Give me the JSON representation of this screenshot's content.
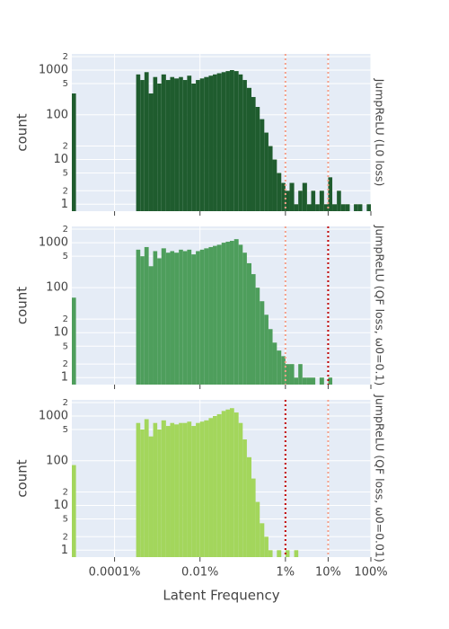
{
  "chart_data": [
    {
      "type": "histogram",
      "panel_label": "JumpReLU (L0 loss)",
      "y_label": "count",
      "color": "#1f5c2e",
      "xlim": [
        1e-05,
        100
      ],
      "xlog": true,
      "ylim": [
        0.7,
        2300
      ],
      "ylog": true,
      "grid": true,
      "yticks": [
        1,
        2,
        5,
        10,
        {
          "value": 20,
          "label": "2"
        },
        100,
        {
          "value": 500,
          "label": "5"
        },
        1000,
        {
          "value": 2000,
          "label": "2"
        }
      ],
      "vlines": [
        {
          "x": 1,
          "color": "#f4a08a"
        },
        {
          "x": 10,
          "color": "#f4a08a"
        }
      ],
      "bins": [
        1e-05,
        1.25e-05,
        1.6e-05,
        2e-05,
        2.5e-05,
        3.2e-05,
        4e-05,
        5e-05,
        6.3e-05,
        8e-05,
        0.0001,
        0.000125,
        0.00016,
        0.0002,
        0.00025,
        0.00032,
        0.0004,
        0.0005,
        0.00063,
        0.0008,
        0.001,
        0.00125,
        0.0016,
        0.002,
        0.0025,
        0.0032,
        0.004,
        0.005,
        0.0063,
        0.008,
        0.01,
        0.0125,
        0.016,
        0.02,
        0.025,
        0.032,
        0.04,
        0.05,
        0.063,
        0.08,
        0.1,
        0.125,
        0.16,
        0.2,
        0.25,
        0.32,
        0.4,
        0.5,
        0.63,
        0.8,
        1,
        1.25,
        1.6,
        2,
        2.5,
        3.2,
        4,
        5,
        6.3,
        8,
        10,
        12.5,
        16,
        20,
        25,
        32,
        40,
        50,
        63,
        80,
        100
      ],
      "counts": [
        300,
        0,
        0,
        0,
        0,
        0,
        0,
        0,
        0,
        0,
        0,
        0,
        0,
        0,
        0,
        800,
        600,
        900,
        300,
        700,
        500,
        800,
        600,
        700,
        650,
        700,
        600,
        750,
        500,
        600,
        650,
        700,
        750,
        800,
        850,
        900,
        950,
        1000,
        950,
        800,
        600,
        400,
        250,
        150,
        80,
        40,
        20,
        10,
        5,
        3,
        2,
        3,
        1,
        2,
        3,
        1,
        2,
        1,
        2,
        1,
        4,
        1,
        2,
        1,
        1,
        0,
        1,
        1,
        0,
        1
      ]
    },
    {
      "type": "histogram",
      "panel_label": "JumpReLU (QF loss, ω0=0.1)",
      "y_label": "count",
      "color": "#4e9e5c",
      "xlim": [
        1e-05,
        100
      ],
      "xlog": true,
      "ylim": [
        0.7,
        2300
      ],
      "ylog": true,
      "grid": true,
      "yticks": [
        1,
        2,
        5,
        10,
        {
          "value": 20,
          "label": "2"
        },
        100,
        {
          "value": 500,
          "label": "5"
        },
        1000,
        {
          "value": 2000,
          "label": "2"
        }
      ],
      "vlines": [
        {
          "x": 1,
          "color": "#f4a08a"
        },
        {
          "x": 10,
          "color": "#c00000"
        }
      ],
      "bins": [
        1e-05,
        1.25e-05,
        1.6e-05,
        2e-05,
        2.5e-05,
        3.2e-05,
        4e-05,
        5e-05,
        6.3e-05,
        8e-05,
        0.0001,
        0.000125,
        0.00016,
        0.0002,
        0.00025,
        0.00032,
        0.0004,
        0.0005,
        0.00063,
        0.0008,
        0.001,
        0.00125,
        0.0016,
        0.002,
        0.0025,
        0.0032,
        0.004,
        0.005,
        0.0063,
        0.008,
        0.01,
        0.0125,
        0.016,
        0.02,
        0.025,
        0.032,
        0.04,
        0.05,
        0.063,
        0.08,
        0.1,
        0.125,
        0.16,
        0.2,
        0.25,
        0.32,
        0.4,
        0.5,
        0.63,
        0.8,
        1,
        1.25,
        1.6,
        2,
        2.5,
        3.2,
        4,
        5,
        6.3,
        8,
        10,
        12.5,
        16,
        20,
        25,
        32,
        40,
        50,
        63,
        80,
        100
      ],
      "counts": [
        60,
        0,
        0,
        0,
        0,
        0,
        0,
        0,
        0,
        0,
        0,
        0,
        0,
        0,
        0,
        700,
        500,
        800,
        300,
        650,
        450,
        750,
        600,
        650,
        600,
        700,
        650,
        700,
        550,
        650,
        700,
        750,
        800,
        850,
        900,
        1000,
        1050,
        1100,
        1200,
        900,
        600,
        350,
        200,
        100,
        50,
        25,
        12,
        6,
        4,
        3,
        2,
        2,
        1,
        2,
        1,
        1,
        1,
        0,
        1,
        0,
        1,
        0,
        0,
        0,
        0,
        0,
        0,
        0,
        0,
        0
      ]
    },
    {
      "type": "histogram",
      "panel_label": "JumpReLU (QF loss, ω0=0.01)",
      "y_label": "count",
      "x_label": "Latent Frequency",
      "color": "#a3d65c",
      "xlim": [
        1e-05,
        100
      ],
      "xlog": true,
      "ylim": [
        0.7,
        2300
      ],
      "ylog": true,
      "grid": true,
      "xticks": [
        {
          "value": 0.0001,
          "label": "0.0001%"
        },
        {
          "value": 0.01,
          "label": "0.01%"
        },
        {
          "value": 1,
          "label": "1%"
        },
        {
          "value": 10,
          "label": "10%"
        },
        {
          "value": 100,
          "label": "100%"
        }
      ],
      "yticks": [
        1,
        2,
        5,
        10,
        {
          "value": 20,
          "label": "2"
        },
        100,
        {
          "value": 500,
          "label": "5"
        },
        1000,
        {
          "value": 2000,
          "label": "2"
        }
      ],
      "vlines": [
        {
          "x": 1,
          "color": "#c00000"
        },
        {
          "x": 10,
          "color": "#f4a08a"
        }
      ],
      "bins": [
        1e-05,
        1.25e-05,
        1.6e-05,
        2e-05,
        2.5e-05,
        3.2e-05,
        4e-05,
        5e-05,
        6.3e-05,
        8e-05,
        0.0001,
        0.000125,
        0.00016,
        0.0002,
        0.00025,
        0.00032,
        0.0004,
        0.0005,
        0.00063,
        0.0008,
        0.001,
        0.00125,
        0.0016,
        0.002,
        0.0025,
        0.0032,
        0.004,
        0.005,
        0.0063,
        0.008,
        0.01,
        0.0125,
        0.016,
        0.02,
        0.025,
        0.032,
        0.04,
        0.05,
        0.063,
        0.08,
        0.1,
        0.125,
        0.16,
        0.2,
        0.25,
        0.32,
        0.4,
        0.5,
        0.63,
        0.8,
        1,
        1.25,
        1.6,
        2,
        2.5,
        3.2,
        4,
        5,
        6.3,
        8,
        10,
        12.5,
        16,
        20,
        25,
        32,
        40,
        50,
        63,
        80,
        100
      ],
      "counts": [
        80,
        0,
        0,
        0,
        0,
        0,
        0,
        0,
        0,
        0,
        0,
        0,
        0,
        0,
        0,
        700,
        500,
        850,
        350,
        700,
        500,
        800,
        600,
        700,
        650,
        700,
        700,
        750,
        600,
        700,
        750,
        800,
        900,
        1000,
        1100,
        1300,
        1400,
        1500,
        1200,
        700,
        300,
        120,
        40,
        12,
        4,
        2,
        1,
        0,
        1,
        0,
        1,
        0,
        1,
        0,
        0,
        0,
        0,
        0,
        0,
        0,
        0,
        0,
        0,
        0,
        0,
        0,
        0,
        0,
        0,
        0
      ]
    }
  ]
}
